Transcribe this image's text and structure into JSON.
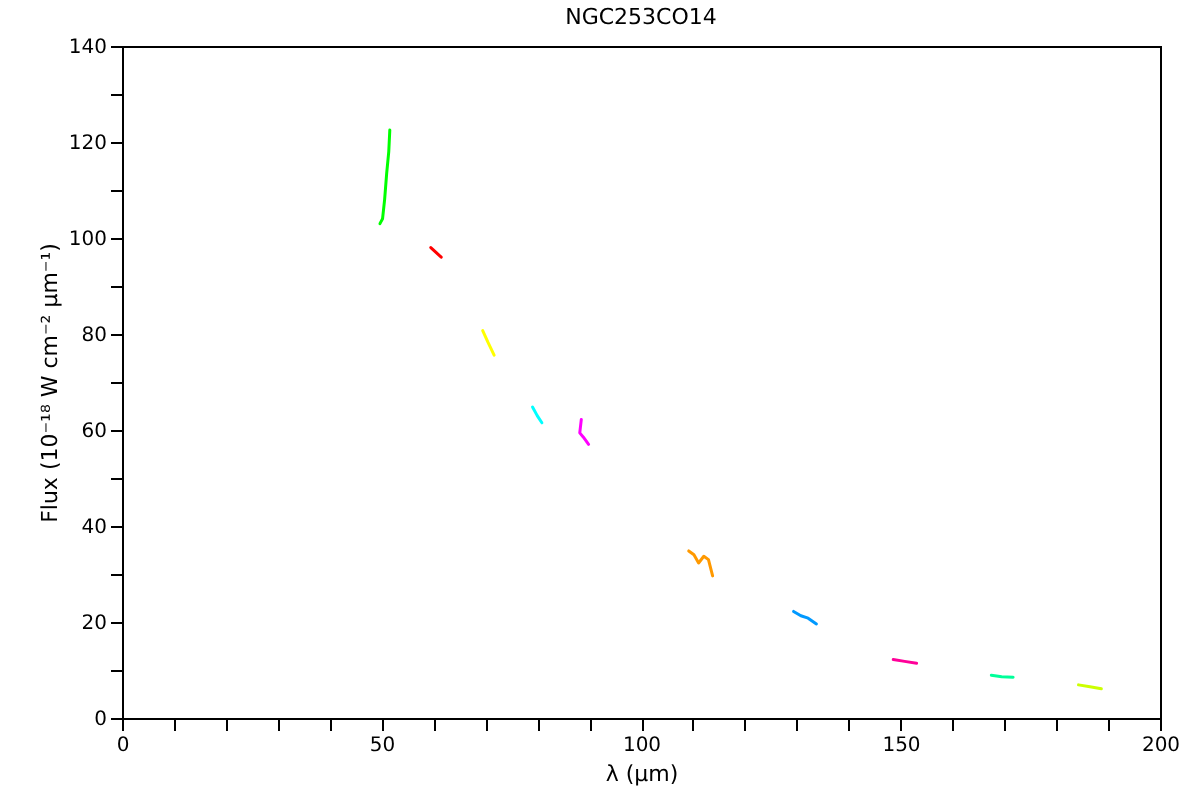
{
  "chart_data": {
    "type": "line",
    "title": "NGC253CO14",
    "xlabel": "λ (μm)",
    "ylabel": "Flux (10⁻¹⁸ W cm⁻² μm⁻¹)",
    "xlim": [
      0,
      200
    ],
    "ylim": [
      0,
      140
    ],
    "xticks": [
      0,
      {
        "value": 10,
        "label": null
      },
      {
        "value": 20,
        "label": null
      },
      {
        "value": 30,
        "label": null
      },
      {
        "value": 40,
        "label": null
      },
      50,
      {
        "value": 60,
        "label": null
      },
      {
        "value": 70,
        "label": null
      },
      {
        "value": 80,
        "label": null
      },
      {
        "value": 90,
        "label": null
      },
      100,
      {
        "value": 110,
        "label": null
      },
      {
        "value": 120,
        "label": null
      },
      {
        "value": 130,
        "label": null
      },
      {
        "value": 140,
        "label": null
      },
      150,
      {
        "value": 160,
        "label": null
      },
      {
        "value": 170,
        "label": null
      },
      {
        "value": 180,
        "label": null
      },
      {
        "value": 190,
        "label": null
      },
      200
    ],
    "yticks": [
      0,
      {
        "value": 10,
        "label": null
      },
      20,
      {
        "value": 30,
        "label": null
      },
      40,
      {
        "value": 50,
        "label": null
      },
      60,
      {
        "value": 70,
        "label": null
      },
      80,
      {
        "value": 90,
        "label": null
      },
      100,
      {
        "value": 110,
        "label": null
      },
      120,
      {
        "value": 130,
        "label": null
      },
      140
    ],
    "series": [
      {
        "color": "#00ff00",
        "x": [
          49.7,
          50.2,
          50.6,
          51.0,
          51.4,
          51.6
        ],
        "values": [
          103,
          104,
          108,
          113.5,
          118,
          122.5
        ]
      },
      {
        "color": "#ff0000",
        "x": [
          59.5,
          60.5,
          61.5
        ],
        "values": [
          98,
          97,
          96
        ]
      },
      {
        "color": "#ffff00",
        "x": [
          69.5,
          70.5,
          71.7
        ],
        "values": [
          80.7,
          78.3,
          75.6
        ]
      },
      {
        "color": "#00ffff",
        "x": [
          79.1,
          80.0,
          80.9
        ],
        "values": [
          64.8,
          63.0,
          61.5
        ]
      },
      {
        "color": "#ff00ff",
        "x": [
          88.5,
          88.2,
          88.9,
          89.9
        ],
        "values": [
          62.2,
          59.4,
          58.5,
          57.0
        ]
      },
      {
        "color": "#ff9900",
        "x": [
          109.2,
          110.2,
          111.1,
          112.1,
          113.0,
          113.8
        ],
        "values": [
          34.8,
          34.0,
          32.3,
          33.7,
          33.0,
          29.6
        ]
      },
      {
        "color": "#0099ff",
        "x": [
          129.4,
          130.8,
          132.2,
          133.8
        ],
        "values": [
          22.2,
          21.3,
          20.8,
          19.6
        ]
      },
      {
        "color": "#ff0099",
        "x": [
          148.6,
          150.8,
          153.1
        ],
        "values": [
          12.2,
          11.8,
          11.4
        ]
      },
      {
        "color": "#00ff99",
        "x": [
          167.5,
          169.5,
          171.7
        ],
        "values": [
          8.9,
          8.6,
          8.5
        ]
      },
      {
        "color": "#ccff00",
        "x": [
          184.3,
          186.5,
          188.7
        ],
        "values": [
          6.9,
          6.5,
          6.1
        ]
      }
    ]
  }
}
